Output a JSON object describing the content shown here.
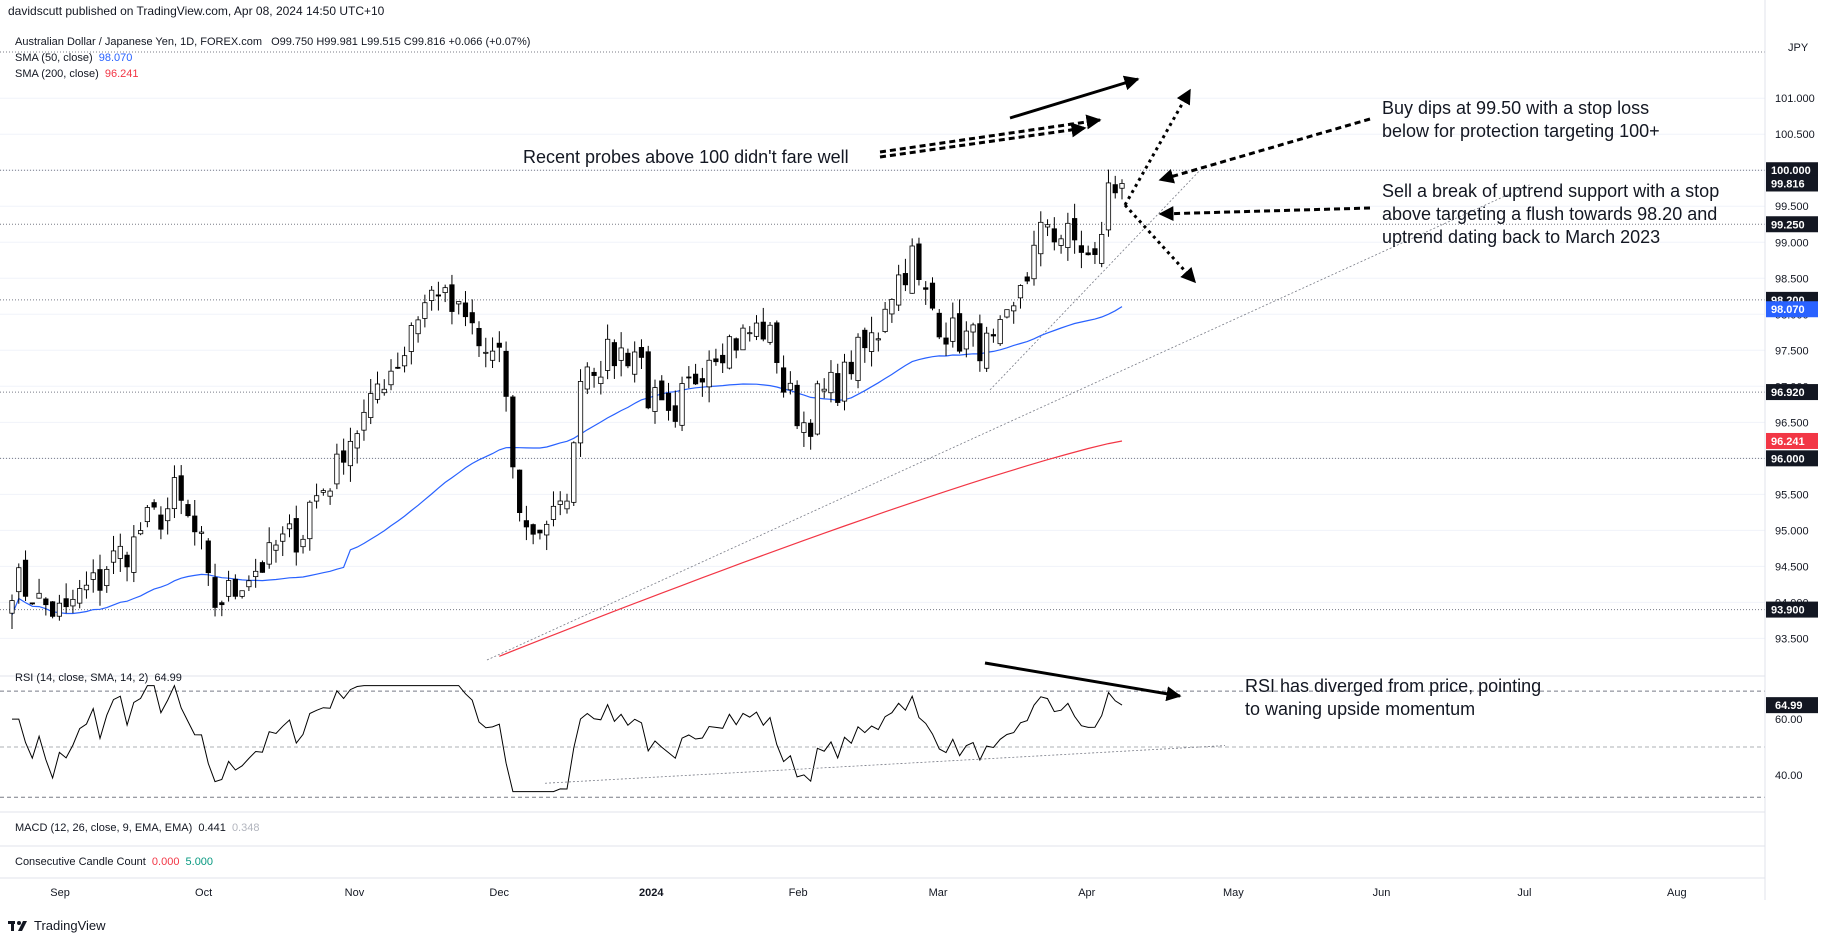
{
  "header": {
    "publisher": "davidscutt published on TradingView.com, Apr 08, 2024 14:50 UTC+10",
    "symbol": "Australian Dollar / Japanese Yen, 1D, FOREX.com",
    "ohlc": "O99.750  H99.981  L99.515  C99.816  +0.066 (+0.07%)",
    "currency": "JPY",
    "sma50_label": "SMA (50, close)",
    "sma50_value": "98.070",
    "sma200_label": "SMA (200, close)",
    "sma200_value": "96.241"
  },
  "colors": {
    "up": "#ffffff",
    "down": "#000000",
    "sma50": "#2962ff",
    "sma200": "#f23645",
    "rsi": "#000000"
  },
  "price_panel": {
    "y_ticks": [
      "101.000",
      "100.500",
      "100.000",
      "99.500",
      "99.000",
      "98.500",
      "98.000",
      "97.500",
      "97.000",
      "96.500",
      "96.000",
      "95.500",
      "95.000",
      "94.500",
      "94.000",
      "93.500"
    ],
    "y_tick_values": [
      101.0,
      100.5,
      100.0,
      99.5,
      99.0,
      98.5,
      98.0,
      97.5,
      97.0,
      96.5,
      96.0,
      95.5,
      95.0,
      94.5,
      94.0,
      93.5
    ],
    "ylim": [
      93.2,
      101.35
    ],
    "badges": [
      {
        "label": "100.000",
        "value": 100.0,
        "kind": "level"
      },
      {
        "label": "99.816",
        "value": 99.816,
        "kind": "last"
      },
      {
        "label": "99.250",
        "value": 99.25,
        "kind": "level"
      },
      {
        "label": "98.200",
        "value": 98.2,
        "kind": "level"
      },
      {
        "label": "98.070",
        "value": 98.07,
        "kind": "sma50"
      },
      {
        "label": "96.920",
        "value": 96.92,
        "kind": "level"
      },
      {
        "label": "96.241",
        "value": 96.241,
        "kind": "sma200"
      },
      {
        "label": "96.000",
        "value": 96.0,
        "kind": "level"
      },
      {
        "label": "93.900",
        "value": 93.9,
        "kind": "level"
      }
    ],
    "horizontal_levels": [
      100.0,
      99.25,
      98.2,
      96.92,
      96.0,
      93.9
    ]
  },
  "annotations": {
    "probes": "Recent probes above 100 didn't fare well",
    "buy_line1": "Buy dips at 99.50 with a stop loss",
    "buy_line2": "below for protection targeting 100+",
    "sell_line1": "Sell a break of uptrend support with a stop",
    "sell_line2": "above targeting a flush towards 98.20 and",
    "sell_line3": "uptrend dating back to March 2023",
    "rsi_line1": "RSI has diverged from price, pointing",
    "rsi_line2": "to waning upside momentum"
  },
  "rsi_panel": {
    "label": "RSI (14, close, SMA, 14, 2)",
    "value": "64.99",
    "y_ticks": [
      "60.00",
      "40.00"
    ],
    "y_tick_values": [
      60,
      40
    ],
    "ylim": [
      31,
      74
    ]
  },
  "macd": {
    "label": "MACD (12, 26, close, 9, EMA, EMA)",
    "v1": "0.441",
    "v2": "0.348"
  },
  "ccc": {
    "label": "Consecutive Candle Count",
    "v1": "0.000",
    "v2": "5.000"
  },
  "x_axis": [
    "Sep",
    "Oct",
    "Nov",
    "Dec",
    "2024",
    "Feb",
    "Mar",
    "Apr",
    "May",
    "Jun",
    "Jul",
    "Aug"
  ],
  "brand": "TradingView",
  "chart_data": {
    "type": "candlestick",
    "title": "Australian Dollar / Japanese Yen, 1D, FOREX.com",
    "ylabel": "JPY",
    "ylim": [
      93.2,
      101.35
    ],
    "period": "2023-08-22 to 2024-04-08 (daily)",
    "close_anchors": [
      {
        "x": "2023-08-22",
        "close": 94.3
      },
      {
        "x": "2023-09-01",
        "close": 93.8
      },
      {
        "x": "2023-09-12",
        "close": 94.6
      },
      {
        "x": "2023-09-25",
        "close": 95.5
      },
      {
        "x": "2023-10-03",
        "close": 94.0
      },
      {
        "x": "2023-10-20",
        "close": 95.0
      },
      {
        "x": "2023-11-10",
        "close": 97.5
      },
      {
        "x": "2023-11-17",
        "close": 98.4
      },
      {
        "x": "2023-11-30",
        "close": 97.3
      },
      {
        "x": "2023-12-06",
        "close": 95.0
      },
      {
        "x": "2023-12-13",
        "close": 95.2
      },
      {
        "x": "2023-12-18",
        "close": 97.3
      },
      {
        "x": "2023-12-28",
        "close": 97.5
      },
      {
        "x": "2024-01-05",
        "close": 96.3
      },
      {
        "x": "2024-01-12",
        "close": 97.5
      },
      {
        "x": "2024-01-24",
        "close": 97.8
      },
      {
        "x": "2024-02-01",
        "close": 96.5
      },
      {
        "x": "2024-02-14",
        "close": 97.5
      },
      {
        "x": "2024-02-23",
        "close": 98.8
      },
      {
        "x": "2024-03-01",
        "close": 97.8
      },
      {
        "x": "2024-03-12",
        "close": 97.5
      },
      {
        "x": "2024-03-19",
        "close": 98.6
      },
      {
        "x": "2024-03-22",
        "close": 99.3
      },
      {
        "x": "2024-03-28",
        "close": 99.0
      },
      {
        "x": "2024-04-02",
        "close": 98.7
      },
      {
        "x": "2024-04-04",
        "close": 99.7
      },
      {
        "x": "2024-04-08",
        "close": 99.816
      }
    ],
    "series": [
      {
        "name": "SMA (50, close)",
        "last": 98.07
      },
      {
        "name": "SMA (200, close)",
        "last": 96.241
      }
    ],
    "rsi_last": 64.99
  }
}
